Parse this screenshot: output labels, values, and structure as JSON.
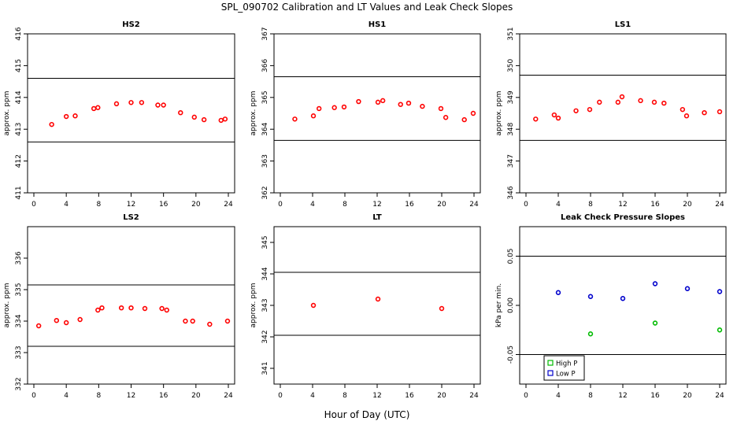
{
  "title": "SPL_090702  Calibration and LT Values and Leak Check Slopes",
  "xlabel": "Hour of Day (UTC)",
  "chart_data": [
    {
      "type": "scatter",
      "title": "HS2",
      "ylabel": "approx. ppm",
      "xlim": [
        0,
        24
      ],
      "ylim": [
        411,
        416
      ],
      "xticks": [
        0,
        4,
        8,
        12,
        16,
        20,
        24
      ],
      "yticks": [
        411,
        412,
        413,
        414,
        415,
        416
      ],
      "hlines": [
        412.6,
        414.6
      ],
      "series": [
        {
          "name": "cal",
          "color": "#ff0000",
          "marker": "circle",
          "x": [
            2.2,
            4.0,
            5.1,
            7.4,
            7.9,
            10.2,
            12.0,
            13.3,
            15.3,
            16.0,
            18.1,
            19.8,
            21.0,
            23.1,
            23.6
          ],
          "y": [
            413.15,
            413.4,
            413.42,
            413.65,
            413.68,
            413.8,
            413.84,
            413.84,
            413.76,
            413.76,
            413.52,
            413.38,
            413.3,
            413.28,
            413.32
          ]
        }
      ]
    },
    {
      "type": "scatter",
      "title": "HS1",
      "ylabel": "approx. ppm",
      "xlim": [
        0,
        24
      ],
      "ylim": [
        362,
        367
      ],
      "xticks": [
        0,
        4,
        8,
        12,
        16,
        20,
        24
      ],
      "yticks": [
        362,
        363,
        364,
        365,
        366,
        367
      ],
      "hlines": [
        363.65,
        365.65
      ],
      "series": [
        {
          "name": "cal",
          "color": "#ff0000",
          "marker": "circle",
          "x": [
            1.8,
            4.1,
            4.8,
            6.7,
            7.9,
            9.7,
            12.1,
            12.7,
            14.9,
            15.9,
            17.6,
            19.9,
            20.5,
            22.8,
            23.9
          ],
          "y": [
            364.32,
            364.42,
            364.65,
            364.68,
            364.7,
            364.87,
            364.85,
            364.9,
            364.78,
            364.82,
            364.72,
            364.65,
            364.37,
            364.3,
            364.5
          ]
        }
      ]
    },
    {
      "type": "scatter",
      "title": "LS1",
      "ylabel": "approx. ppm",
      "xlim": [
        0,
        24
      ],
      "ylim": [
        346,
        351
      ],
      "xticks": [
        0,
        4,
        8,
        12,
        16,
        20,
        24
      ],
      "yticks": [
        346,
        347,
        348,
        349,
        350,
        351
      ],
      "hlines": [
        347.65,
        349.7
      ],
      "series": [
        {
          "name": "cal",
          "color": "#ff0000",
          "marker": "circle",
          "x": [
            1.2,
            3.5,
            4.0,
            6.2,
            7.9,
            9.1,
            11.4,
            11.9,
            14.2,
            15.9,
            17.1,
            19.4,
            19.9,
            22.1,
            24.0
          ],
          "y": [
            348.32,
            348.45,
            348.35,
            348.58,
            348.62,
            348.85,
            348.85,
            349.02,
            348.9,
            348.85,
            348.82,
            348.62,
            348.42,
            348.52,
            348.55
          ]
        }
      ]
    },
    {
      "type": "scatter",
      "title": "LS2",
      "ylabel": "approx. ppm",
      "xlim": [
        0,
        24
      ],
      "ylim": [
        332,
        337
      ],
      "xticks": [
        0,
        4,
        8,
        12,
        16,
        20,
        24
      ],
      "yticks": [
        332,
        333,
        334,
        335,
        336
      ],
      "hlines": [
        333.2,
        335.15
      ],
      "series": [
        {
          "name": "cal",
          "color": "#ff0000",
          "marker": "circle",
          "x": [
            0.6,
            2.8,
            4.0,
            5.7,
            7.9,
            8.4,
            10.8,
            12.0,
            13.7,
            15.8,
            16.4,
            18.7,
            19.6,
            21.7,
            23.9
          ],
          "y": [
            333.85,
            334.02,
            333.95,
            334.05,
            334.35,
            334.42,
            334.42,
            334.42,
            334.4,
            334.4,
            334.35,
            334.0,
            334.0,
            333.9,
            334.0
          ]
        }
      ]
    },
    {
      "type": "scatter",
      "title": "LT",
      "ylabel": "approx. ppm",
      "xlim": [
        0,
        24
      ],
      "ylim": [
        340.5,
        345.5
      ],
      "xticks": [
        0,
        4,
        8,
        12,
        16,
        20,
        24
      ],
      "yticks": [
        341,
        342,
        343,
        344,
        345
      ],
      "hlines": [
        342.05,
        344.05
      ],
      "series": [
        {
          "name": "LT",
          "color": "#ff0000",
          "marker": "circle",
          "x": [
            4.1,
            12.1,
            20.0
          ],
          "y": [
            343.0,
            343.2,
            342.9
          ]
        }
      ]
    },
    {
      "type": "scatter",
      "title": "Leak Check Pressure Slopes",
      "ylabel": "kPa per min.",
      "xlim": [
        0,
        24
      ],
      "ylim": [
        -0.08,
        0.08
      ],
      "xticks": [
        0,
        4,
        8,
        12,
        16,
        20,
        24
      ],
      "yticks": [
        -0.05,
        0.0,
        0.05
      ],
      "ytick_labels": [
        "-0.05",
        "0.00",
        "0.05"
      ],
      "hlines": [
        -0.05,
        0.05
      ],
      "legend": {
        "position": "bottom-left",
        "entries": [
          "High P",
          "Low P"
        ]
      },
      "series": [
        {
          "name": "High P",
          "color": "#00bb00",
          "marker": "circle",
          "x": [
            8.0,
            16.0,
            24.0
          ],
          "y": [
            -0.029,
            -0.018,
            -0.025
          ]
        },
        {
          "name": "Low P",
          "color": "#0000cc",
          "marker": "circle",
          "x": [
            4.0,
            8.0,
            12.0,
            16.0,
            20.0,
            24.0
          ],
          "y": [
            0.013,
            0.009,
            0.007,
            0.022,
            0.017,
            0.014
          ]
        }
      ]
    }
  ]
}
